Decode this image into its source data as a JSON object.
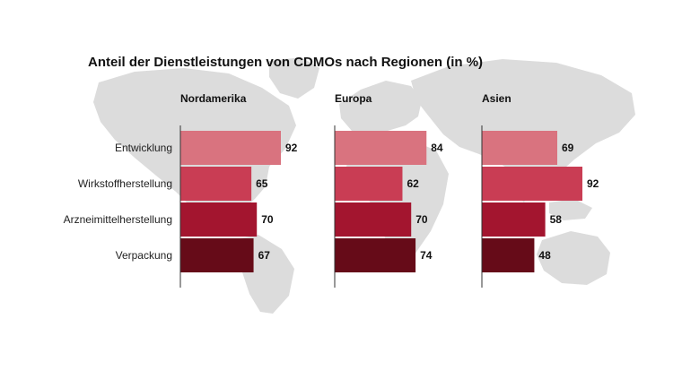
{
  "chart_data": {
    "type": "bar",
    "orientation": "horizontal",
    "title": "Anteil der Dienstleistungen von CDMOs nach Regionen (in %)",
    "categories": [
      "Entwicklung",
      "Wirkstoffherstellung",
      "Arzneimittelherstellung",
      "Verpackung"
    ],
    "category_colors": [
      "#d9737f",
      "#c93d54",
      "#a3152f",
      "#660b18"
    ],
    "unit": "%",
    "xlim": [
      0,
      100
    ],
    "grid": false,
    "legend": "none",
    "background": "world-map",
    "panels": [
      {
        "name": "Nordamerika",
        "values": [
          92,
          65,
          70,
          67
        ]
      },
      {
        "name": "Europa",
        "values": [
          84,
          62,
          70,
          74
        ]
      },
      {
        "name": "Asien",
        "values": [
          69,
          92,
          58,
          48
        ]
      }
    ]
  }
}
